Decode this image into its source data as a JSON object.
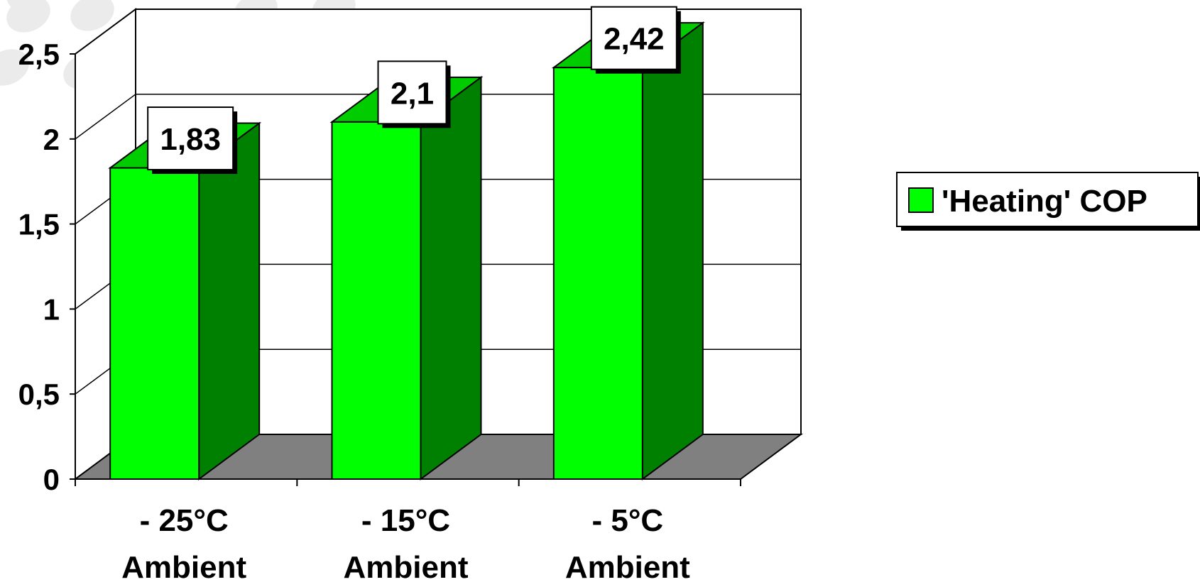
{
  "chart_data": {
    "type": "bar",
    "style": "3d-column",
    "categories": [
      [
        "- 25°C",
        "Ambient"
      ],
      [
        "- 15°C",
        "Ambient"
      ],
      [
        "- 5°C",
        "Ambient"
      ]
    ],
    "series": [
      {
        "name": "'Heating' COP",
        "values": [
          1.83,
          2.1,
          2.42
        ],
        "labels": [
          "1,83",
          "2,1",
          "2,42"
        ]
      }
    ],
    "ylim": [
      0,
      2.5
    ],
    "yticks": [
      0,
      0.5,
      1,
      1.5,
      2,
      2.5
    ],
    "ytick_labels": [
      "0",
      "0,5",
      "1",
      "1,5",
      "2",
      "2,5"
    ],
    "grid": true,
    "legend_position": "right",
    "colors": {
      "bar_front": "#00ff00",
      "bar_top": "#00cc00",
      "bar_side": "#008000",
      "floor": "#808080",
      "background": "#ffffff",
      "decor_spots": "#ebebeb"
    }
  }
}
